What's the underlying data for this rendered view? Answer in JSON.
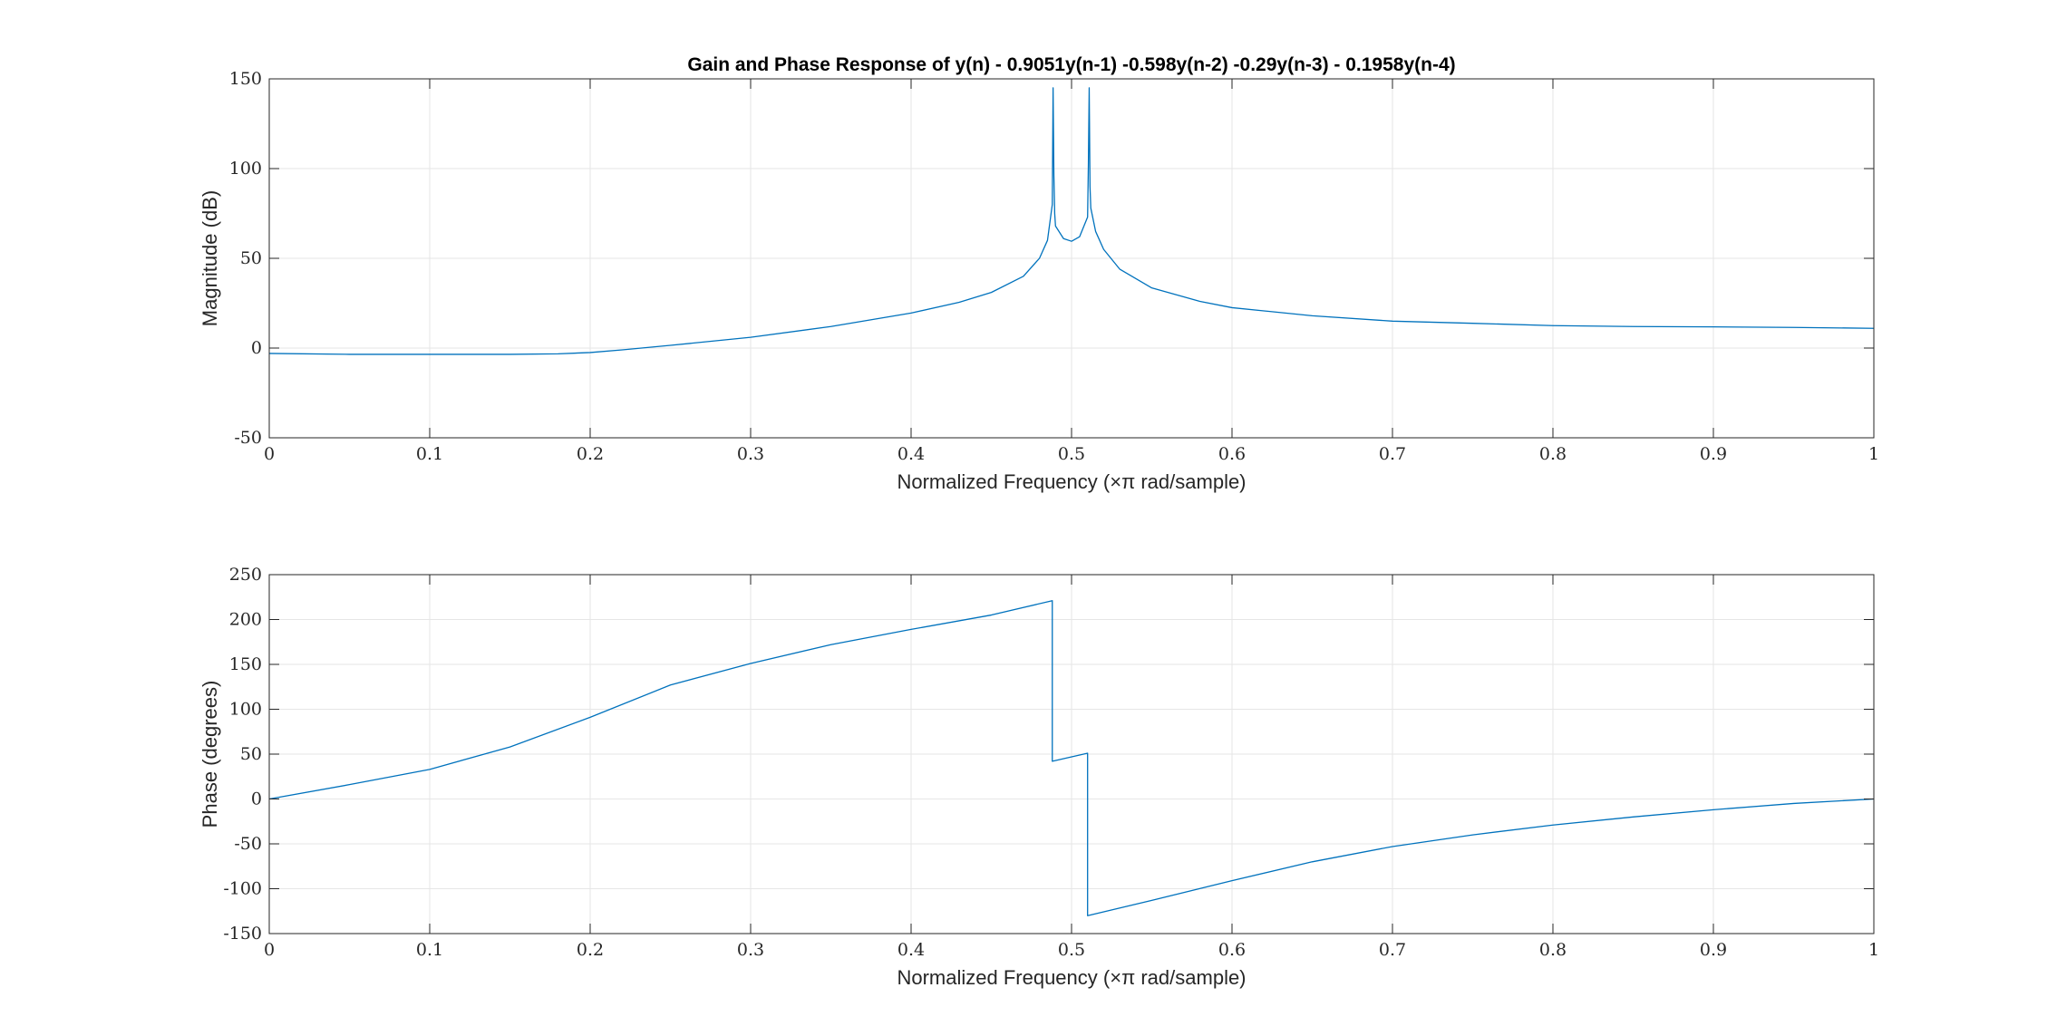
{
  "chart_data": [
    {
      "type": "line",
      "title": "Gain and Phase Response of y(n) - 0.9051y(n-1) -0.598y(n-2) -0.29y(n-3) - 0.1958y(n-4)",
      "xlabel": "Normalized Frequency  (×π rad/sample)",
      "ylabel": "Magnitude (dB)",
      "xlim": [
        0,
        1
      ],
      "ylim": [
        -50,
        150
      ],
      "xticks": [
        "0",
        "0.1",
        "0.2",
        "0.3",
        "0.4",
        "0.5",
        "0.6",
        "0.7",
        "0.8",
        "0.9",
        "1"
      ],
      "yticks": [
        "-50",
        "0",
        "50",
        "100",
        "150"
      ],
      "grid": true,
      "color": "#0072bd",
      "series": [
        {
          "x": [
            0,
            0.05,
            0.1,
            0.15,
            0.18,
            0.2,
            0.22,
            0.25,
            0.3,
            0.35,
            0.4,
            0.43,
            0.45,
            0.47,
            0.48,
            0.485,
            0.488,
            0.4885,
            0.489,
            0.4895,
            0.49,
            0.495,
            0.5,
            0.505,
            0.51,
            0.5105,
            0.511,
            0.5115,
            0.512,
            0.515,
            0.52,
            0.53,
            0.55,
            0.58,
            0.6,
            0.65,
            0.7,
            0.75,
            0.8,
            0.85,
            0.9,
            0.95,
            1
          ],
          "y": [
            -3,
            -3.5,
            -3.5,
            -3.5,
            -3.2,
            -2.5,
            -1,
            1.5,
            6,
            12,
            19.5,
            25.5,
            31,
            40,
            50,
            60,
            80,
            145,
            96,
            75,
            68,
            61,
            59.5,
            62,
            73,
            103,
            145,
            90,
            78,
            65,
            55,
            44,
            33.5,
            26,
            22.5,
            18,
            15,
            13.8,
            12.5,
            12,
            11.8,
            11.5,
            11
          ]
        }
      ]
    },
    {
      "type": "line",
      "xlabel": "Normalized Frequency  (×π rad/sample)",
      "ylabel": "Phase (degrees)",
      "xlim": [
        0,
        1
      ],
      "ylim": [
        -150,
        250
      ],
      "xticks": [
        "0",
        "0.1",
        "0.2",
        "0.3",
        "0.4",
        "0.5",
        "0.6",
        "0.7",
        "0.8",
        "0.9",
        "1"
      ],
      "yticks": [
        "-150",
        "-100",
        "-50",
        "0",
        "50",
        "100",
        "150",
        "200",
        "250"
      ],
      "grid": true,
      "color": "#0072bd",
      "series": [
        {
          "x": [
            0,
            0.05,
            0.1,
            0.15,
            0.2,
            0.25,
            0.3,
            0.35,
            0.4,
            0.45,
            0.488,
            0.488,
            0.51,
            0.51,
            0.55,
            0.6,
            0.65,
            0.7,
            0.75,
            0.8,
            0.85,
            0.9,
            0.95,
            1
          ],
          "y": [
            0,
            16,
            33,
            58,
            91,
            127,
            151,
            172,
            189,
            205,
            221,
            42,
            51,
            -130,
            -113,
            -91,
            -70,
            -53,
            -40,
            -29,
            -20,
            -12,
            -5,
            0
          ]
        }
      ]
    }
  ]
}
